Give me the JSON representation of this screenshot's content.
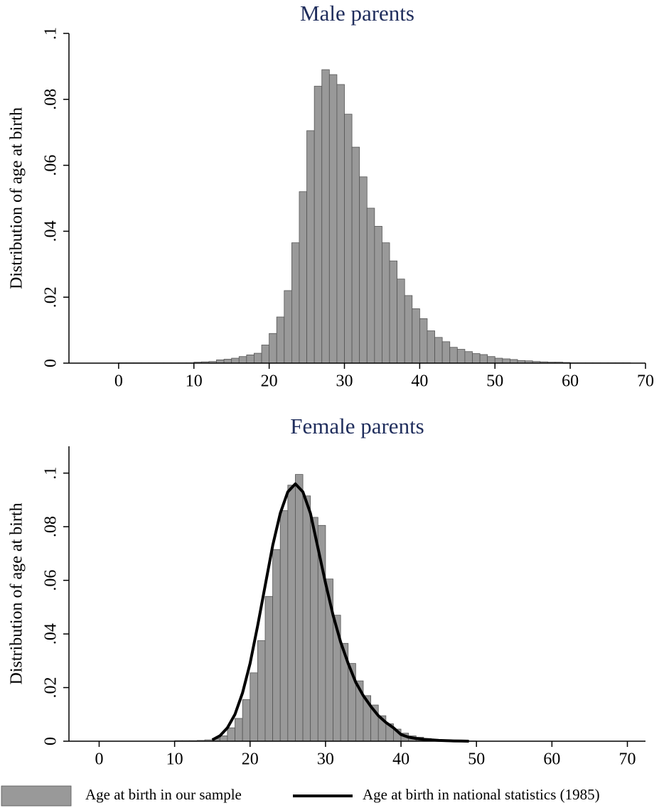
{
  "chart_data": [
    {
      "type": "histogram",
      "title": "Male parents",
      "ylabel": "Distribution of age at birth",
      "bins": [
        0,
        1,
        2,
        3,
        4,
        5,
        6,
        7,
        8,
        9,
        10,
        11,
        12,
        13,
        14,
        15,
        16,
        17,
        18,
        19,
        20,
        21,
        22,
        23,
        24,
        25,
        26,
        27,
        28,
        29,
        30,
        31,
        32,
        33,
        34,
        35,
        36,
        37,
        38,
        39,
        40,
        41,
        42,
        43,
        44,
        45,
        46,
        47,
        48,
        49,
        50,
        51,
        52,
        53,
        54,
        55,
        56,
        57,
        58,
        59,
        60,
        61,
        62,
        63,
        64,
        65,
        66,
        67,
        68
      ],
      "values": [
        0.0001,
        0.0001,
        0.0001,
        0.0001,
        0.0001,
        0.0001,
        0.0001,
        0.0001,
        0.0001,
        0.0001,
        0.0003,
        0.0004,
        0.0005,
        0.001,
        0.0012,
        0.0015,
        0.002,
        0.0025,
        0.003,
        0.0055,
        0.009,
        0.014,
        0.022,
        0.0365,
        0.052,
        0.0705,
        0.084,
        0.089,
        0.0875,
        0.0845,
        0.0755,
        0.0655,
        0.0565,
        0.047,
        0.0415,
        0.0365,
        0.031,
        0.0255,
        0.0205,
        0.0165,
        0.0135,
        0.0098,
        0.0078,
        0.0065,
        0.0048,
        0.0042,
        0.0035,
        0.0029,
        0.0026,
        0.002,
        0.0015,
        0.0013,
        0.0011,
        0.0008,
        0.0007,
        0.0005,
        0.0004,
        0.0003,
        0.0003,
        0.0002,
        0.0001,
        0.0001,
        0.0001,
        0.0001,
        0.0001,
        0.0001,
        0.0001,
        0.0001
      ],
      "color": "#999999",
      "xlim": [
        -6.6,
        70
      ],
      "xticks": [
        0,
        10,
        20,
        30,
        40,
        50,
        60,
        70
      ],
      "ylim": [
        0,
        0.1
      ],
      "yticks": [
        0,
        {
          "value": 0.02,
          "label": ".02"
        },
        {
          "value": 0.04,
          "label": ".04"
        },
        {
          "value": 0.06,
          "label": ".06"
        },
        {
          "value": 0.08,
          "label": ".08"
        },
        {
          "value": 0.1,
          "label": ".1"
        }
      ]
    },
    {
      "type": "histogram",
      "title": "Female parents",
      "ylabel": "Distribution of age at birth",
      "bins": [
        10,
        11,
        12,
        13,
        14,
        15,
        16,
        17,
        18,
        19,
        20,
        21,
        22,
        23,
        24,
        25,
        26,
        27,
        28,
        29,
        30,
        31,
        32,
        33,
        34,
        35,
        36,
        37,
        38,
        39,
        40,
        41,
        42,
        43,
        44,
        45,
        46,
        47,
        48,
        49,
        50
      ],
      "series": [
        {
          "name": "Age at birth in our sample",
          "type": "histogram",
          "color": "#999999",
          "values": [
            0.0002,
            0.0002,
            0.0002,
            0.0003,
            0.0005,
            0.001,
            0.002,
            0.005,
            0.0085,
            0.0155,
            0.0255,
            0.0375,
            0.054,
            0.0715,
            0.086,
            0.0955,
            0.0995,
            0.0915,
            0.0835,
            0.0805,
            0.0605,
            0.047,
            0.0365,
            0.029,
            0.0225,
            0.017,
            0.0135,
            0.0095,
            0.0065,
            0.0045,
            0.003,
            0.002,
            0.0015,
            0.001,
            0.0007,
            0.0005,
            0.0003,
            0.0002,
            0.0001,
            0.0001
          ]
        },
        {
          "name": "Age at birth in national statistics (1985)",
          "type": "line",
          "color": "#000000",
          "x": [
            15,
            16,
            17,
            18,
            19,
            20,
            21,
            22,
            23,
            24,
            25,
            26,
            27,
            28,
            29,
            30,
            31,
            32,
            33,
            34,
            35,
            36,
            37,
            38,
            39,
            40,
            41,
            42,
            43,
            44,
            45,
            46,
            47,
            48,
            49
          ],
          "values": [
            0.0005,
            0.002,
            0.005,
            0.01,
            0.018,
            0.029,
            0.043,
            0.058,
            0.073,
            0.085,
            0.093,
            0.096,
            0.093,
            0.085,
            0.072,
            0.059,
            0.047,
            0.037,
            0.029,
            0.022,
            0.017,
            0.013,
            0.0095,
            0.007,
            0.005,
            0.0025,
            0.0015,
            0.001,
            0.0007,
            0.0005,
            0.0003,
            0.0002,
            0.0001,
            5e-05,
            0
          ]
        }
      ],
      "legend": "bottom",
      "xlim": [
        -4,
        72.4
      ],
      "xticks": [
        0,
        10,
        20,
        30,
        40,
        50,
        60,
        70
      ],
      "ylim": [
        0,
        0.11
      ],
      "yticks": [
        0,
        {
          "value": 0.02,
          "label": ".02"
        },
        {
          "value": 0.04,
          "label": ".04"
        },
        {
          "value": 0.06,
          "label": ".06"
        },
        {
          "value": 0.08,
          "label": ".08"
        },
        {
          "value": 0.1,
          "label": ".1"
        }
      ]
    }
  ]
}
